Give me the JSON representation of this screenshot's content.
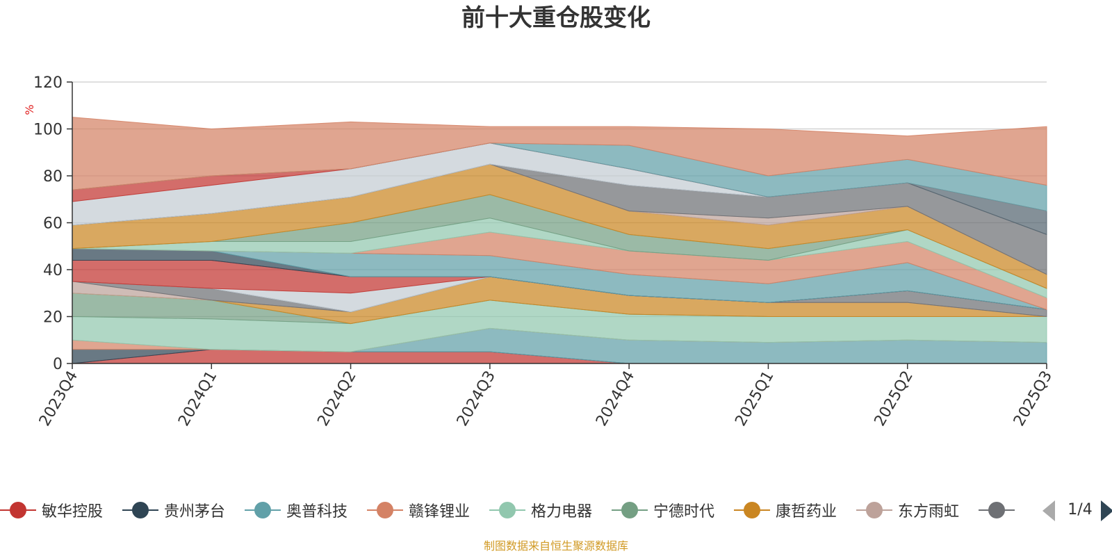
{
  "title": "前十大重仓股变化",
  "footer": "制图数据来自恒生聚源数据库",
  "legend_pager": "1/4",
  "chart_data": {
    "type": "area",
    "stacked": true,
    "title": "前十大重仓股变化",
    "xlabel": "",
    "ylabel": "%",
    "categories": [
      "2023Q4",
      "2024Q1",
      "2024Q2",
      "2024Q3",
      "2024Q4",
      "2025Q1",
      "2025Q2",
      "2025Q3"
    ],
    "ylim": [
      0,
      120
    ],
    "yticks": [
      0,
      20,
      40,
      60,
      80,
      100,
      120
    ],
    "grid": true,
    "legend_position": "bottom",
    "series": [
      {
        "name": "敏华控股",
        "color": "#c23531",
        "values": [
          0,
          6,
          5,
          5,
          0,
          0,
          0,
          0
        ]
      },
      {
        "name": "贵州茅台",
        "color": "#2f4554",
        "values": [
          6,
          0,
          0,
          0,
          0,
          0,
          0,
          0
        ]
      },
      {
        "name": "奥普科技",
        "color": "#61a0a8",
        "values": [
          0,
          0,
          0,
          10,
          10,
          9,
          10,
          9
        ]
      },
      {
        "name": "赣锋锂业",
        "color": "#d48265",
        "values": [
          4,
          0,
          0,
          0,
          0,
          0,
          0,
          0
        ]
      },
      {
        "name": "格力电器",
        "color": "#91c7ae",
        "values": [
          10,
          13,
          12,
          12,
          11,
          11,
          10,
          11
        ]
      },
      {
        "name": "宁德时代",
        "color": "#749f83",
        "values": [
          10,
          8,
          0,
          0,
          0,
          0,
          0,
          0
        ]
      },
      {
        "name": "康哲药业",
        "color": "#ca8622",
        "values": [
          0,
          0,
          5,
          10,
          8,
          6,
          6,
          0
        ]
      },
      {
        "name": "东方雨虹",
        "color": "#bda29a",
        "values": [
          5,
          0,
          0,
          0,
          0,
          0,
          0,
          0
        ]
      },
      {
        "name": "",
        "color": "#6e7074",
        "values": [
          0,
          5,
          0,
          0,
          0,
          0,
          5,
          3
        ]
      },
      {
        "name": "",
        "color": "#546570",
        "values": [
          0,
          0,
          0,
          0,
          0,
          0,
          0,
          0
        ]
      },
      {
        "name": "",
        "color": "#c4ccd3",
        "values": [
          0,
          0,
          8,
          0,
          0,
          0,
          0,
          0
        ]
      },
      {
        "name": "",
        "color": "#c23531",
        "values": [
          9,
          12,
          7,
          0,
          0,
          0,
          0,
          0
        ]
      },
      {
        "name": "",
        "color": "#2f4554",
        "values": [
          5,
          4,
          0,
          0,
          0,
          0,
          0,
          0
        ]
      },
      {
        "name": "",
        "color": "#61a0a8",
        "values": [
          0,
          0,
          10,
          9,
          9,
          8,
          12,
          0
        ]
      },
      {
        "name": "",
        "color": "#d48265",
        "values": [
          0,
          0,
          0,
          10,
          10,
          10,
          9,
          5
        ]
      },
      {
        "name": "",
        "color": "#91c7ae",
        "values": [
          0,
          4,
          5,
          6,
          0,
          0,
          5,
          4
        ]
      },
      {
        "name": "",
        "color": "#749f83",
        "values": [
          0,
          0,
          8,
          10,
          7,
          5,
          0,
          0
        ]
      },
      {
        "name": "",
        "color": "#ca8622",
        "values": [
          10,
          12,
          11,
          13,
          10,
          10,
          10,
          6
        ]
      },
      {
        "name": "",
        "color": "#bda29a",
        "values": [
          0,
          0,
          0,
          0,
          0,
          3,
          0,
          0
        ]
      },
      {
        "name": "",
        "color": "#6e7074",
        "values": [
          0,
          0,
          0,
          0,
          11,
          9,
          10,
          17
        ]
      },
      {
        "name": "",
        "color": "#546570",
        "values": [
          0,
          0,
          0,
          0,
          0,
          0,
          0,
          10
        ]
      },
      {
        "name": "",
        "color": "#c4ccd3",
        "values": [
          10,
          12,
          12,
          9,
          7,
          0,
          0,
          0
        ]
      },
      {
        "name": "",
        "color": "#c23531",
        "values": [
          5,
          4,
          0,
          0,
          0,
          0,
          0,
          0
        ]
      },
      {
        "name": "",
        "color": "#61a0a8",
        "values": [
          0,
          0,
          0,
          0,
          10,
          9,
          10,
          11
        ]
      },
      {
        "name": "",
        "color": "#d48265",
        "values": [
          31,
          20,
          20,
          7,
          8,
          20,
          10,
          25
        ]
      }
    ]
  }
}
